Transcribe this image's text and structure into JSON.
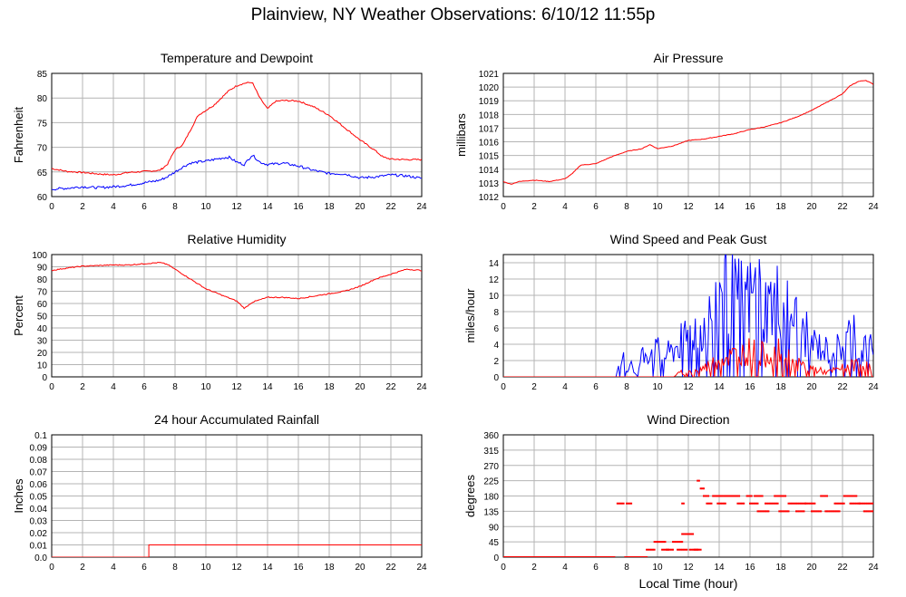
{
  "page_title": "Plainview, NY Weather Observations: 6/10/12 11:55p",
  "shared_xlabel": "Local Time (hour)",
  "chart_data": [
    {
      "id": "temp",
      "type": "line",
      "title": "Temperature and Dewpoint",
      "ylabel": "Fahrenheit",
      "xlabel": "",
      "xlim": [
        0,
        24
      ],
      "ylim": [
        60,
        85
      ],
      "xticks": [
        0,
        2,
        4,
        6,
        8,
        10,
        12,
        14,
        16,
        18,
        20,
        22,
        24
      ],
      "yticks": [
        60,
        65,
        70,
        75,
        80,
        85
      ],
      "grid": true,
      "series": [
        {
          "color": "#ff0000",
          "noise": 0.3,
          "points": [
            [
              0,
              65.7
            ],
            [
              1,
              65.1
            ],
            [
              2,
              64.9
            ],
            [
              3,
              64.6
            ],
            [
              4,
              64.4
            ],
            [
              5,
              64.9
            ],
            [
              6,
              65.1
            ],
            [
              7,
              65.3
            ],
            [
              7.5,
              66.5
            ],
            [
              8,
              69.5
            ],
            [
              8.5,
              70.5
            ],
            [
              9,
              73.5
            ],
            [
              9.5,
              76.5
            ],
            [
              10,
              77.5
            ],
            [
              10.5,
              78.5
            ],
            [
              11,
              80
            ],
            [
              11.5,
              81.5
            ],
            [
              12,
              82.5
            ],
            [
              12.5,
              83
            ],
            [
              13,
              83.2
            ],
            [
              13.5,
              80
            ],
            [
              14,
              77.8
            ],
            [
              14.5,
              79.3
            ],
            [
              15,
              79.5
            ],
            [
              16,
              79.4
            ],
            [
              17,
              78.2
            ],
            [
              18,
              76.5
            ],
            [
              19,
              74
            ],
            [
              20,
              71.5
            ],
            [
              21,
              69.3
            ],
            [
              21.5,
              68
            ],
            [
              22,
              67.6
            ],
            [
              23,
              67.5
            ],
            [
              24,
              67.5
            ]
          ]
        },
        {
          "color": "#0000ff",
          "noise": 0.5,
          "points": [
            [
              0,
              61.5
            ],
            [
              1,
              61.7
            ],
            [
              2,
              62
            ],
            [
              3,
              61.8
            ],
            [
              4,
              62
            ],
            [
              5,
              62.3
            ],
            [
              6,
              62.8
            ],
            [
              7,
              63.3
            ],
            [
              7.5,
              64
            ],
            [
              8,
              65
            ],
            [
              8.5,
              66
            ],
            [
              9,
              66.8
            ],
            [
              10,
              67.2
            ],
            [
              11,
              67.8
            ],
            [
              11.5,
              68
            ],
            [
              12,
              67
            ],
            [
              12.5,
              66.5
            ],
            [
              13,
              68.5
            ],
            [
              13.5,
              67
            ],
            [
              14,
              66.5
            ],
            [
              15,
              66.8
            ],
            [
              16,
              66.2
            ],
            [
              17,
              65.3
            ],
            [
              18,
              64.7
            ],
            [
              19,
              64.6
            ],
            [
              20,
              63.8
            ],
            [
              21,
              64
            ],
            [
              22,
              64.4
            ],
            [
              23,
              64.2
            ],
            [
              24,
              63.7
            ]
          ]
        }
      ]
    },
    {
      "id": "pressure",
      "type": "line",
      "title": "Air Pressure",
      "ylabel": "millibars",
      "xlabel": "",
      "xlim": [
        0,
        24
      ],
      "ylim": [
        1012,
        1021
      ],
      "xticks": [
        0,
        2,
        4,
        6,
        8,
        10,
        12,
        14,
        16,
        18,
        20,
        22,
        24
      ],
      "yticks": [
        1012,
        1013,
        1014,
        1015,
        1016,
        1017,
        1018,
        1019,
        1020,
        1021
      ],
      "grid": true,
      "series": [
        {
          "color": "#ff0000",
          "noise": 0.04,
          "points": [
            [
              0,
              1013.1
            ],
            [
              0.5,
              1012.9
            ],
            [
              1,
              1013.1
            ],
            [
              2,
              1013.2
            ],
            [
              3,
              1013.1
            ],
            [
              4,
              1013.3
            ],
            [
              4.5,
              1013.7
            ],
            [
              5,
              1014.3
            ],
            [
              6,
              1014.4
            ],
            [
              7,
              1014.9
            ],
            [
              8,
              1015.3
            ],
            [
              9,
              1015.5
            ],
            [
              9.5,
              1015.8
            ],
            [
              10,
              1015.5
            ],
            [
              11,
              1015.7
            ],
            [
              12,
              1016.1
            ],
            [
              13,
              1016.2
            ],
            [
              14,
              1016.4
            ],
            [
              15,
              1016.6
            ],
            [
              16,
              1016.9
            ],
            [
              17,
              1017.1
            ],
            [
              18,
              1017.4
            ],
            [
              19,
              1017.8
            ],
            [
              20,
              1018.3
            ],
            [
              21,
              1018.9
            ],
            [
              22,
              1019.5
            ],
            [
              22.5,
              1020.1
            ],
            [
              23,
              1020.4
            ],
            [
              23.5,
              1020.5
            ],
            [
              24,
              1020.2
            ]
          ]
        }
      ]
    },
    {
      "id": "humidity",
      "type": "line",
      "title": "Relative Humidity",
      "ylabel": "Percent",
      "xlabel": "",
      "xlim": [
        0,
        24
      ],
      "ylim": [
        0,
        100
      ],
      "xticks": [
        0,
        2,
        4,
        6,
        8,
        10,
        12,
        14,
        16,
        18,
        20,
        22,
        24
      ],
      "yticks": [
        0,
        10,
        20,
        30,
        40,
        50,
        60,
        70,
        80,
        90,
        100
      ],
      "grid": true,
      "series": [
        {
          "color": "#ff0000",
          "noise": 0.8,
          "points": [
            [
              0,
              87
            ],
            [
              1,
              89
            ],
            [
              2,
              90.5
            ],
            [
              3,
              91
            ],
            [
              4,
              91.5
            ],
            [
              5,
              91.5
            ],
            [
              6,
              92.5
            ],
            [
              7,
              93.5
            ],
            [
              7.5,
              92
            ],
            [
              8,
              88
            ],
            [
              9,
              80
            ],
            [
              10,
              72
            ],
            [
              11,
              67
            ],
            [
              12,
              62
            ],
            [
              12.5,
              56
            ],
            [
              13,
              61
            ],
            [
              14,
              65
            ],
            [
              15,
              65
            ],
            [
              16,
              64
            ],
            [
              17,
              66
            ],
            [
              18,
              68
            ],
            [
              19,
              70
            ],
            [
              20,
              74
            ],
            [
              21,
              80
            ],
            [
              22,
              84
            ],
            [
              23,
              88
            ],
            [
              24,
              87
            ]
          ]
        }
      ]
    },
    {
      "id": "wind",
      "type": "line",
      "title": "Wind Speed and Peak Gust",
      "ylabel": "miles/hour",
      "xlabel": "",
      "xlim": [
        0,
        24
      ],
      "ylim": [
        0,
        15
      ],
      "xticks": [
        0,
        2,
        4,
        6,
        8,
        10,
        12,
        14,
        16,
        18,
        20,
        22,
        24
      ],
      "yticks": [
        0,
        2,
        4,
        6,
        8,
        10,
        12,
        14
      ],
      "grid": true,
      "series": [
        {
          "color": "#0000ff",
          "style": "random",
          "points": [
            [
              0,
              0
            ],
            [
              1,
              0
            ],
            [
              2,
              0
            ],
            [
              3,
              0
            ],
            [
              4,
              0
            ],
            [
              5,
              0
            ],
            [
              6,
              0
            ],
            [
              7,
              0
            ],
            [
              7.3,
              0
            ],
            [
              7.5,
              1
            ],
            [
              7.8,
              2
            ],
            [
              8,
              0.5
            ],
            [
              8.3,
              2
            ],
            [
              8.6,
              0
            ],
            [
              9,
              2.5
            ],
            [
              9.5,
              3
            ],
            [
              10,
              3
            ],
            [
              10.5,
              2.5
            ],
            [
              11,
              3
            ],
            [
              11.5,
              4
            ],
            [
              12,
              5
            ],
            [
              13,
              6
            ],
            [
              13.5,
              7
            ],
            [
              14,
              9
            ],
            [
              14.2,
              12.5
            ],
            [
              15,
              9
            ],
            [
              16,
              9
            ],
            [
              16.5,
              10
            ],
            [
              17,
              8
            ],
            [
              18,
              9
            ],
            [
              18.5,
              8
            ],
            [
              19,
              6.5
            ],
            [
              20,
              4
            ],
            [
              21,
              3
            ],
            [
              22,
              3.5
            ],
            [
              22.8,
              6
            ],
            [
              23,
              3
            ],
            [
              24,
              4
            ]
          ]
        },
        {
          "color": "#ff0000",
          "style": "random",
          "points": [
            [
              0,
              0
            ],
            [
              11,
              0
            ],
            [
              11.5,
              0.5
            ],
            [
              12,
              0.5
            ],
            [
              13,
              1
            ],
            [
              14,
              2
            ],
            [
              15,
              2.5
            ],
            [
              16,
              3
            ],
            [
              17,
              2.5
            ],
            [
              18,
              3
            ],
            [
              19,
              1.5
            ],
            [
              20,
              1
            ],
            [
              21,
              0.5
            ],
            [
              22,
              1
            ],
            [
              23,
              1.5
            ],
            [
              24,
              1
            ]
          ]
        }
      ]
    },
    {
      "id": "rain",
      "type": "line",
      "title": "24 hour Accumulated Rainfall",
      "ylabel": "Inches",
      "xlabel": "",
      "xlim": [
        0,
        24
      ],
      "ylim": [
        0,
        0.1
      ],
      "xticks": [
        0,
        2,
        4,
        6,
        8,
        10,
        12,
        14,
        16,
        18,
        20,
        22,
        24
      ],
      "yticks": [
        0.0,
        0.01,
        0.02,
        0.03,
        0.04,
        0.05,
        0.06,
        0.07,
        0.08,
        0.09,
        0.1
      ],
      "ytick_labels": [
        "0.0",
        "0.01",
        "0.02",
        "0.03",
        "0.04",
        "0.05",
        "0.06",
        "0.07",
        "0.08",
        "0.09",
        "0.1"
      ],
      "grid": true,
      "series": [
        {
          "color": "#ff0000",
          "noise": 0,
          "points": [
            [
              0,
              0
            ],
            [
              6.3,
              0
            ],
            [
              6.3,
              0.01
            ],
            [
              24,
              0.01
            ]
          ]
        }
      ]
    },
    {
      "id": "direction",
      "type": "scatter",
      "title": "Wind Direction",
      "ylabel": "degrees",
      "xlabel": "Local Time (hour)",
      "xlim": [
        0,
        24
      ],
      "ylim": [
        0,
        360
      ],
      "xticks": [
        0,
        2,
        4,
        6,
        8,
        10,
        12,
        14,
        16,
        18,
        20,
        22,
        24
      ],
      "yticks": [
        0,
        45,
        90,
        135,
        180,
        225,
        270,
        315,
        360
      ],
      "grid": true,
      "series": [
        {
          "color": "#ff0000",
          "segments": [
            [
              0,
              7.2,
              0
            ],
            [
              7.4,
              7.8,
              158
            ],
            [
              8.0,
              8.3,
              158
            ],
            [
              7.9,
              9.3,
              0
            ],
            [
              9.3,
              9.8,
              22
            ],
            [
              9.8,
              10.5,
              45
            ],
            [
              10.3,
              10.7,
              22
            ],
            [
              10.6,
              11.0,
              22
            ],
            [
              11.0,
              11.6,
              45
            ],
            [
              11.3,
              11.9,
              22
            ],
            [
              11.6,
              12.3,
              68
            ],
            [
              12.1,
              12.6,
              22
            ],
            [
              12.4,
              12.8,
              22
            ],
            [
              11.6,
              11.7,
              158
            ],
            [
              12.6,
              12.7,
              225
            ],
            [
              12.8,
              13.0,
              202
            ],
            [
              13.0,
              13.3,
              180
            ],
            [
              13.2,
              13.5,
              158
            ],
            [
              13.6,
              14.8,
              180
            ],
            [
              13.9,
              14.4,
              158
            ],
            [
              14.5,
              15.3,
              180
            ],
            [
              15.2,
              15.6,
              158
            ],
            [
              15.8,
              16.1,
              180
            ],
            [
              16.0,
              16.5,
              158
            ],
            [
              16.3,
              16.8,
              180
            ],
            [
              16.5,
              17.2,
              135
            ],
            [
              17.0,
              17.8,
              158
            ],
            [
              17.6,
              18.3,
              180
            ],
            [
              17.9,
              18.5,
              135
            ],
            [
              18.5,
              19.6,
              158
            ],
            [
              19.0,
              19.5,
              135
            ],
            [
              19.6,
              20.2,
              158
            ],
            [
              20.0,
              20.6,
              135
            ],
            [
              20.6,
              21.0,
              180
            ],
            [
              20.9,
              21.8,
              135
            ],
            [
              21.5,
              22.1,
              158
            ],
            [
              22.1,
              22.9,
              180
            ],
            [
              22.5,
              23.1,
              158
            ],
            [
              23.1,
              24.0,
              158
            ],
            [
              23.4,
              24.0,
              135
            ]
          ]
        }
      ]
    }
  ]
}
